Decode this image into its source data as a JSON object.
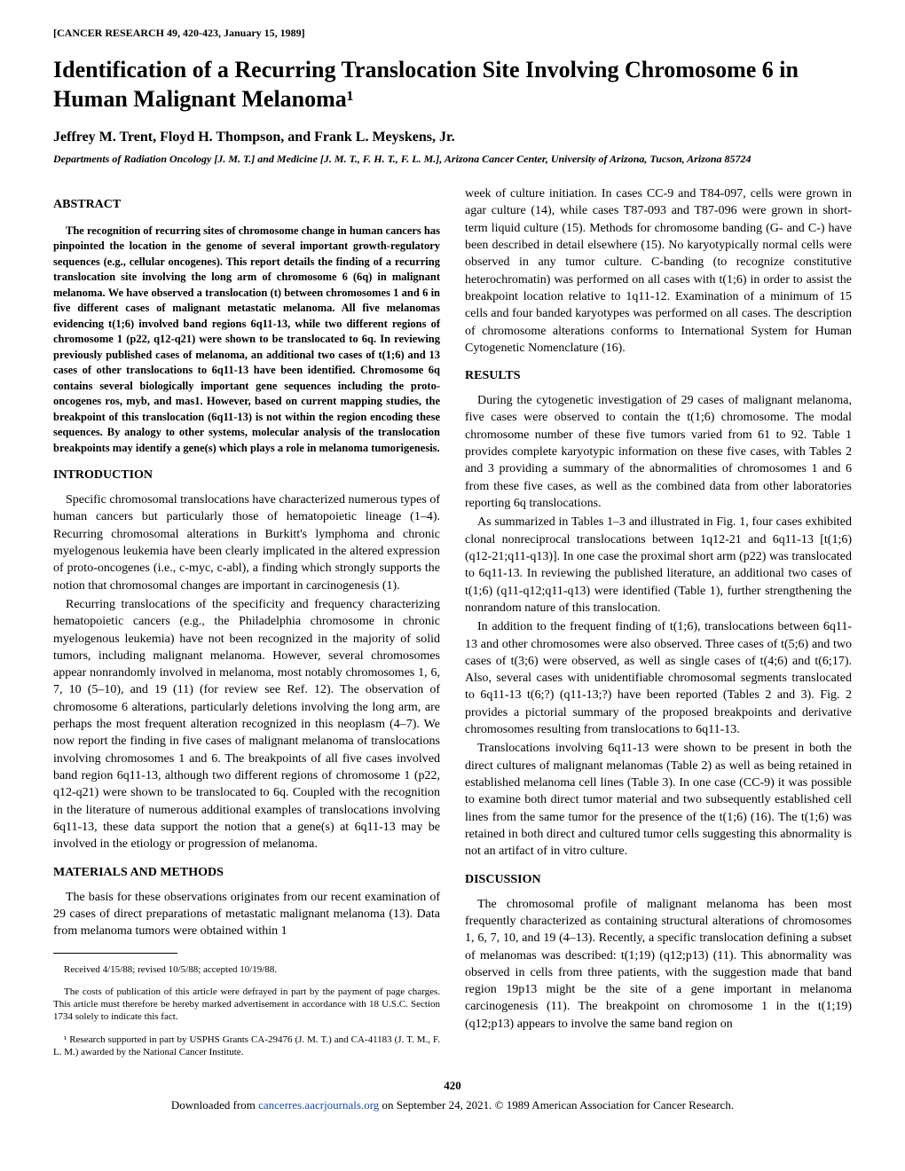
{
  "journal_header": "[CANCER RESEARCH 49, 420-423, January 15, 1989]",
  "title": "Identification of a Recurring Translocation Site Involving Chromosome 6 in Human Malignant Melanoma¹",
  "authors": "Jeffrey M. Trent, Floyd H. Thompson, and Frank L. Meyskens, Jr.",
  "affiliation": "Departments of Radiation Oncology [J. M. T.] and Medicine [J. M. T., F. H. T., F. L. M.], Arizona Cancer Center, University of Arizona, Tucson, Arizona 85724",
  "headings": {
    "abstract": "ABSTRACT",
    "introduction": "INTRODUCTION",
    "materials": "MATERIALS AND METHODS",
    "results": "RESULTS",
    "discussion": "DISCUSSION"
  },
  "abstract": "The recognition of recurring sites of chromosome change in human cancers has pinpointed the location in the genome of several important growth-regulatory sequences (e.g., cellular oncogenes). This report details the finding of a recurring translocation site involving the long arm of chromosome 6 (6q) in malignant melanoma. We have observed a translocation (t) between chromosomes 1 and 6 in five different cases of malignant metastatic melanoma. All five melanomas evidencing t(1;6) involved band regions 6q11-13, while two different regions of chromosome 1 (p22, q12-q21) were shown to be translocated to 6q. In reviewing previously published cases of melanoma, an additional two cases of t(1;6) and 13 cases of other translocations to 6q11-13 have been identified. Chromosome 6q contains several biologically important gene sequences including the proto-oncogenes ros, myb, and mas1. However, based on current mapping studies, the breakpoint of this translocation (6q11-13) is not within the region encoding these sequences. By analogy to other systems, molecular analysis of the translocation breakpoints may identify a gene(s) which plays a role in melanoma tumorigenesis.",
  "introduction": {
    "p1": "Specific chromosomal translocations have characterized numerous types of human cancers but particularly those of hematopoietic lineage (1–4). Recurring chromosomal alterations in Burkitt's lymphoma and chronic myelogenous leukemia have been clearly implicated in the altered expression of proto-oncogenes (i.e., c-myc, c-abl), a finding which strongly supports the notion that chromosomal changes are important in carcinogenesis (1).",
    "p2": "Recurring translocations of the specificity and frequency characterizing hematopoietic cancers (e.g., the Philadelphia chromosome in chronic myelogenous leukemia) have not been recognized in the majority of solid tumors, including malignant melanoma. However, several chromosomes appear nonrandomly involved in melanoma, most notably chromosomes 1, 6, 7, 10 (5–10), and 19 (11) (for review see Ref. 12). The observation of chromosome 6 alterations, particularly deletions involving the long arm, are perhaps the most frequent alteration recognized in this neoplasm (4–7). We now report the finding in five cases of malignant melanoma of translocations involving chromosomes 1 and 6. The breakpoints of all five cases involved band region 6q11-13, although two different regions of chromosome 1 (p22, q12-q21) were shown to be translocated to 6q. Coupled with the recognition in the literature of numerous additional examples of translocations involving 6q11-13, these data support the notion that a gene(s) at 6q11-13 may be involved in the etiology or progression of melanoma."
  },
  "materials": {
    "p1": "The basis for these observations originates from our recent examination of 29 cases of direct preparations of metastatic malignant melanoma (13). Data from melanoma tumors were obtained within 1",
    "p1_cont": "week of culture initiation. In cases CC-9 and T84-097, cells were grown in agar culture (14), while cases T87-093 and T87-096 were grown in short-term liquid culture (15). Methods for chromosome banding (G- and C-) have been described in detail elsewhere (15). No karyotypically normal cells were observed in any tumor culture. C-banding (to recognize constitutive heterochromatin) was performed on all cases with t(1;6) in order to assist the breakpoint location relative to 1q11-12. Examination of a minimum of 15 cells and four banded karyotypes was performed on all cases. The description of chromosome alterations conforms to International System for Human Cytogenetic Nomenclature (16)."
  },
  "results": {
    "p1": "During the cytogenetic investigation of 29 cases of malignant melanoma, five cases were observed to contain the t(1;6) chromosome. The modal chromosome number of these five tumors varied from 61 to 92. Table 1 provides complete karyotypic information on these five cases, with Tables 2 and 3 providing a summary of the abnormalities of chromosomes 1 and 6 from these five cases, as well as the combined data from other laboratories reporting 6q translocations.",
    "p2": "As summarized in Tables 1–3 and illustrated in Fig. 1, four cases exhibited clonal nonreciprocal translocations between 1q12-21 and 6q11-13 [t(1;6) (q12-21;q11-q13)]. In one case the proximal short arm (p22) was translocated to 6q11-13. In reviewing the published literature, an additional two cases of t(1;6) (q11-q12;q11-q13) were identified (Table 1), further strengthening the nonrandom nature of this translocation.",
    "p3": "In addition to the frequent finding of t(1;6), translocations between 6q11-13 and other chromosomes were also observed. Three cases of t(5;6) and two cases of t(3;6) were observed, as well as single cases of t(4;6) and t(6;17). Also, several cases with unidentifiable chromosomal segments translocated to 6q11-13 t(6;?) (q11-13;?) have been reported (Tables 2 and 3). Fig. 2 provides a pictorial summary of the proposed breakpoints and derivative chromosomes resulting from translocations to 6q11-13.",
    "p4": "Translocations involving 6q11-13 were shown to be present in both the direct cultures of malignant melanomas (Table 2) as well as being retained in established melanoma cell lines (Table 3). In one case (CC-9) it was possible to examine both direct tumor material and two subsequently established cell lines from the same tumor for the presence of the t(1;6) (16). The t(1;6) was retained in both direct and cultured tumor cells suggesting this abnormality is not an artifact of in vitro culture."
  },
  "discussion": {
    "p1": "The chromosomal profile of malignant melanoma has been most frequently characterized as containing structural alterations of chromosomes 1, 6, 7, 10, and 19 (4–13). Recently, a specific translocation defining a subset of melanomas was described: t(1;19) (q12;p13) (11). This abnormality was observed in cells from three patients, with the suggestion made that band region 19p13 might be the site of a gene important in melanoma carcinogenesis (11). The breakpoint on chromosome 1 in the t(1;19) (q12;p13) appears to involve the same band region on"
  },
  "footnotes": {
    "f1": "Received 4/15/88; revised 10/5/88; accepted 10/19/88.",
    "f2": "The costs of publication of this article were defrayed in part by the payment of page charges. This article must therefore be hereby marked advertisement in accordance with 18 U.S.C. Section 1734 solely to indicate this fact.",
    "f3": "¹ Research supported in part by USPHS Grants CA-29476 (J. M. T.) and CA-41183 (J. T. M., F. L. M.) awarded by the National Cancer Institute."
  },
  "page_number": "420",
  "download": {
    "prefix": "Downloaded from ",
    "link_text": "cancerres.aacrjournals.org",
    "suffix": " on September 24, 2021. © 1989 American Association for Cancer Research."
  }
}
